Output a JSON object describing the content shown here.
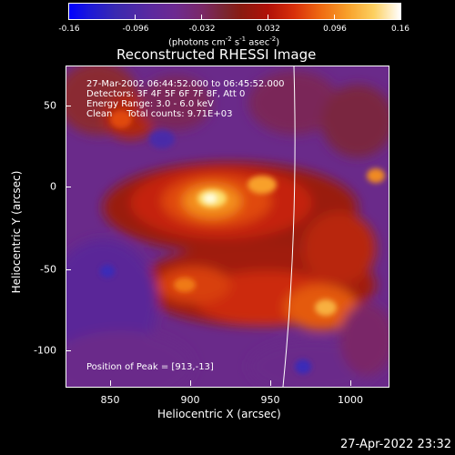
{
  "colorbar": {
    "ticks": [
      "-0.16",
      "-0.096",
      "-0.032",
      "0.032",
      "0.096",
      "0.16"
    ],
    "units": "(photons cm",
    "units_exp1": "-2",
    "units_mid": " s",
    "units_exp2": "-1",
    "units_mid2": " asec",
    "units_exp3": "-2",
    "units_end": ")"
  },
  "plot": {
    "title": "Reconstructed RHESSI Image",
    "info_lines": [
      "27-Mar-2002 06:44:52.000 to 06:45:52.000",
      "Detectors: 3F 4F 5F 6F 7F 8F, Att 0",
      "Energy Range: 3.0 - 6.0 keV",
      "Clean     Total counts: 9.71E+03"
    ],
    "peak_label": "Position of Peak = [913,-13]",
    "xlabel": "Heliocentric X (arcsec)",
    "ylabel": "Heliocentric Y (arcsec)",
    "xticks": [
      "850",
      "900",
      "950",
      "1000"
    ],
    "yticks": [
      "50",
      "0",
      "-50",
      "-100"
    ]
  },
  "footer": {
    "date": "27-Apr-2022 23:32"
  },
  "colors": {
    "background": "#000000",
    "text": "#ffffff",
    "limb": "#ffffff"
  }
}
